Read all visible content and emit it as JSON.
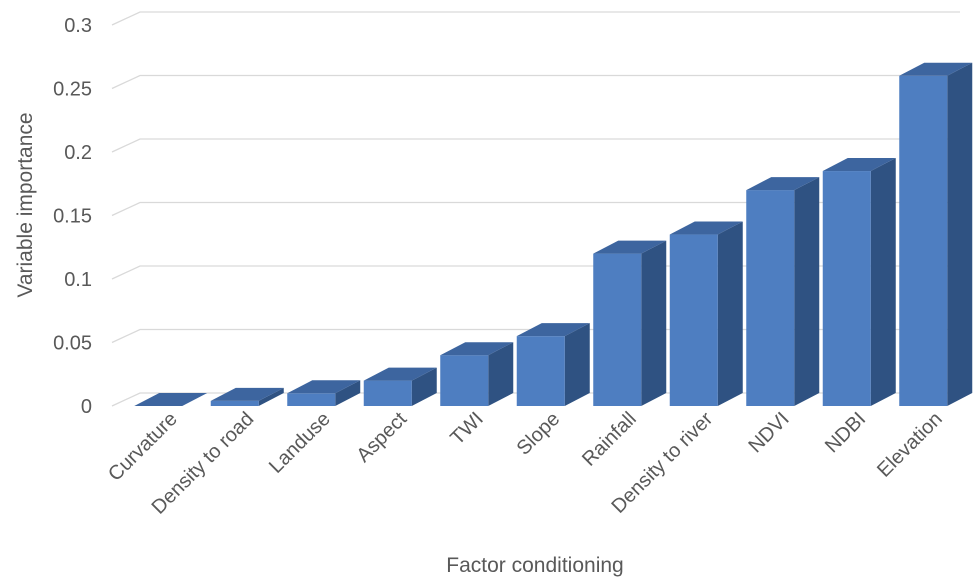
{
  "chart_data": {
    "type": "bar",
    "three_d": true,
    "categories": [
      "Curvature",
      "Density to road",
      "Landuse",
      "Aspect",
      "TWI",
      "Slope",
      "Rainfall",
      "Density to river",
      "NDVI",
      "NDBI",
      "Elevation"
    ],
    "values": [
      0.0,
      0.004,
      0.01,
      0.02,
      0.04,
      0.055,
      0.12,
      0.135,
      0.17,
      0.185,
      0.26
    ],
    "xlabel": "Factor conditioning",
    "ylabel": "Variable importance",
    "ylim": [
      0,
      0.3
    ],
    "yticks": [
      "0",
      "0.05",
      "0.1",
      "0.15",
      "0.2",
      "0.25",
      "0.3"
    ],
    "grid": true,
    "legend": "none",
    "colors": {
      "bar": "#4e7ec1",
      "bar_side": "#2f5282",
      "bar_top": "#3d659f",
      "grid": "#d9d9d9",
      "text": "#595959"
    }
  }
}
